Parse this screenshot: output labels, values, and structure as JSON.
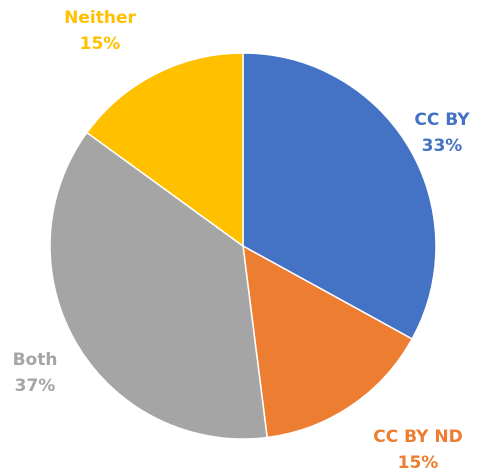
{
  "chart_data": {
    "type": "pie",
    "categories": [
      "CC BY",
      "CC BY ND",
      "Both",
      "Neither"
    ],
    "values": [
      33,
      15,
      37,
      15
    ],
    "value_labels": [
      "33%",
      "15%",
      "37%",
      "15%"
    ],
    "colors": [
      "#4472c4",
      "#ed7d31",
      "#a5a5a5",
      "#ffc000"
    ]
  }
}
